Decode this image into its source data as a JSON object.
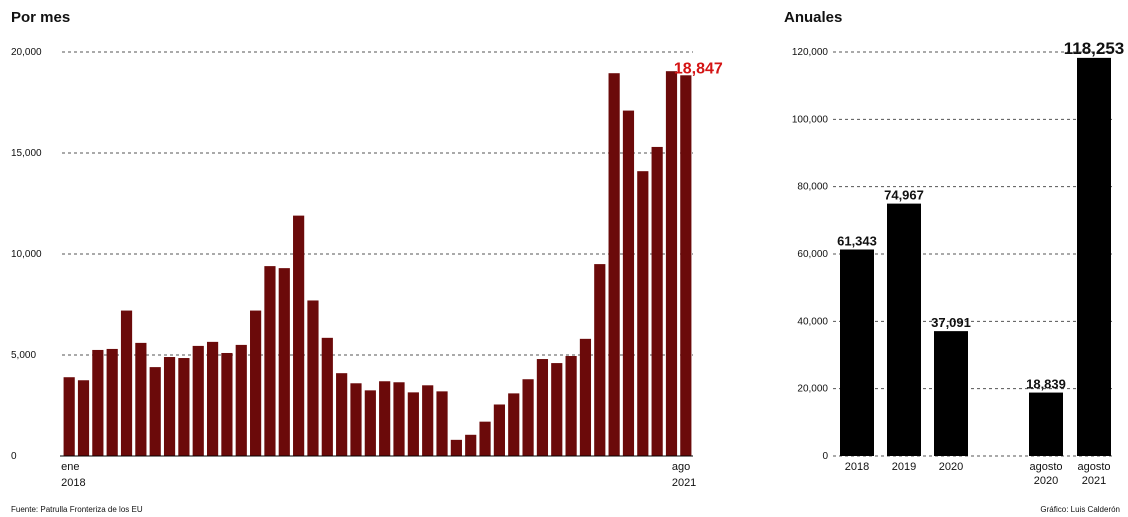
{
  "colors": {
    "monthly_bar": "#6b0a0a",
    "annual_bar": "#000000",
    "highlight": "#d41414",
    "grid": "#555555",
    "text": "#111111"
  },
  "source": "Fuente: Patrulla Fronteriza de los EU",
  "credit": "Gráfico: Luis Calderón",
  "chart_data": [
    {
      "type": "bar",
      "title": "Por mes",
      "ylim": [
        0,
        20000
      ],
      "yticks": [
        0,
        5000,
        10000,
        15000,
        20000
      ],
      "ytick_labels": [
        "0",
        "5,000",
        "10,000",
        "15,000",
        "20,000"
      ],
      "grid": true,
      "x_start_label": [
        "ene",
        "2018"
      ],
      "x_end_label": [
        "ago",
        "2021"
      ],
      "highlight_label": "18,847",
      "values": [
        3900,
        3750,
        5250,
        5300,
        7200,
        5600,
        4400,
        4900,
        4850,
        5450,
        5650,
        5100,
        5500,
        7200,
        9400,
        9300,
        11900,
        7700,
        5850,
        4100,
        3600,
        3250,
        3700,
        3650,
        3150,
        3500,
        3200,
        800,
        1050,
        1700,
        2550,
        3100,
        3800,
        4800,
        4600,
        4950,
        5800,
        9500,
        18950,
        17100,
        14100,
        15300,
        19050,
        18847
      ]
    },
    {
      "type": "bar",
      "title": "Anuales",
      "ylim": [
        0,
        120000
      ],
      "yticks": [
        0,
        20000,
        40000,
        60000,
        80000,
        100000,
        120000
      ],
      "ytick_labels": [
        "0",
        "20,000",
        "40,000",
        "60,000",
        "80,000",
        "100,000",
        "120,000"
      ],
      "grid": true,
      "categories": [
        [
          "2018"
        ],
        [
          "2019"
        ],
        [
          "2020"
        ],
        [
          "agosto",
          "2020"
        ],
        [
          "agosto",
          "2021"
        ]
      ],
      "values": [
        61343,
        74967,
        37091,
        18839,
        118253
      ],
      "data_labels": [
        "61,343",
        "74,967",
        "37,091",
        "18,839",
        "118,253"
      ]
    }
  ]
}
